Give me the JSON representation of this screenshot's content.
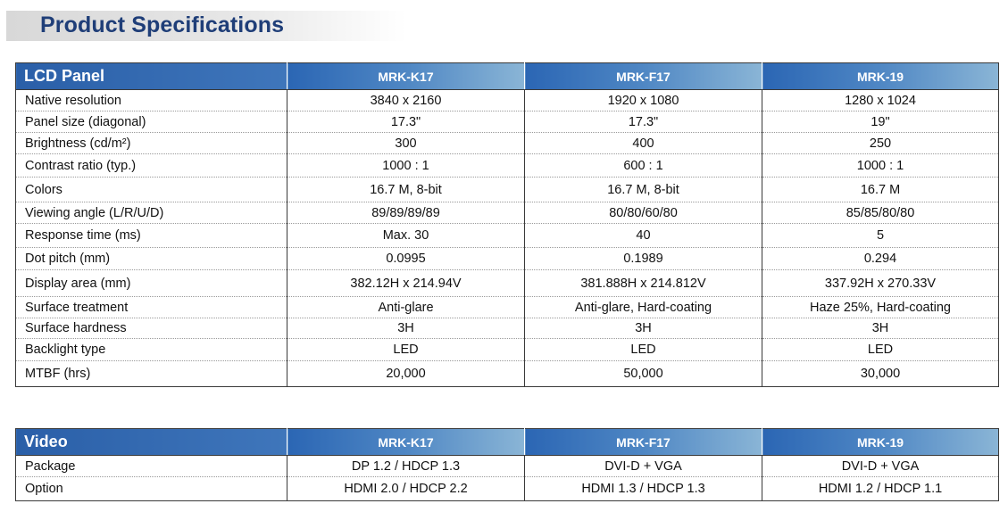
{
  "page_title": "Product Specifications",
  "lcd_panel": {
    "section_title": "LCD Panel",
    "models": [
      "MRK-K17",
      "MRK-F17",
      "MRK-19"
    ],
    "rows": [
      {
        "label": "Native resolution",
        "values": [
          "3840 x 2160",
          "1920 x 1080",
          "1280 x 1024"
        ]
      },
      {
        "label": "Panel size (diagonal)",
        "values": [
          "17.3\"",
          "17.3\"",
          "19\""
        ]
      },
      {
        "label": "Brightness (cd/m²)",
        "values": [
          "300",
          "400",
          "250"
        ]
      },
      {
        "label": "Contrast ratio (typ.)",
        "values": [
          "1000 : 1",
          "600 : 1",
          "1000 : 1"
        ]
      },
      {
        "label": "Colors",
        "values": [
          "16.7 M, 8-bit",
          "16.7 M, 8-bit",
          "16.7 M"
        ]
      },
      {
        "label": "Viewing angle (L/R/U/D)",
        "values": [
          "89/89/89/89",
          "80/80/60/80",
          "85/85/80/80"
        ]
      },
      {
        "label": "Response time (ms)",
        "values": [
          "Max. 30",
          "40",
          "5"
        ]
      },
      {
        "label": "Dot pitch (mm)",
        "values": [
          "0.0995",
          "0.1989",
          "0.294"
        ]
      },
      {
        "label": "Display area (mm)",
        "values": [
          "382.12H x 214.94V",
          "381.888H x 214.812V",
          "337.92H x 270.33V"
        ]
      },
      {
        "label": "Surface treatment",
        "values": [
          "Anti-glare",
          "Anti-glare, Hard-coating",
          "Haze 25%, Hard-coating"
        ]
      },
      {
        "label": "Surface hardness",
        "values": [
          "3H",
          "3H",
          "3H"
        ]
      },
      {
        "label": "Backlight type",
        "values": [
          "LED",
          "LED",
          "LED"
        ]
      },
      {
        "label": "MTBF (hrs)",
        "values": [
          "20,000",
          "50,000",
          "30,000"
        ]
      }
    ]
  },
  "video": {
    "section_title": "Video",
    "models": [
      "MRK-K17",
      "MRK-F17",
      "MRK-19"
    ],
    "rows": [
      {
        "label": "Package",
        "values": [
          "DP 1.2    / HDCP 1.3",
          "DVI-D + VGA",
          "DVI-D + VGA"
        ]
      },
      {
        "label": "Option",
        "values": [
          "HDMI 2.0 / HDCP 2.2",
          "HDMI 1.3 / HDCP 1.3",
          "HDMI 1.2 / HDCP 1.1"
        ]
      }
    ]
  }
}
